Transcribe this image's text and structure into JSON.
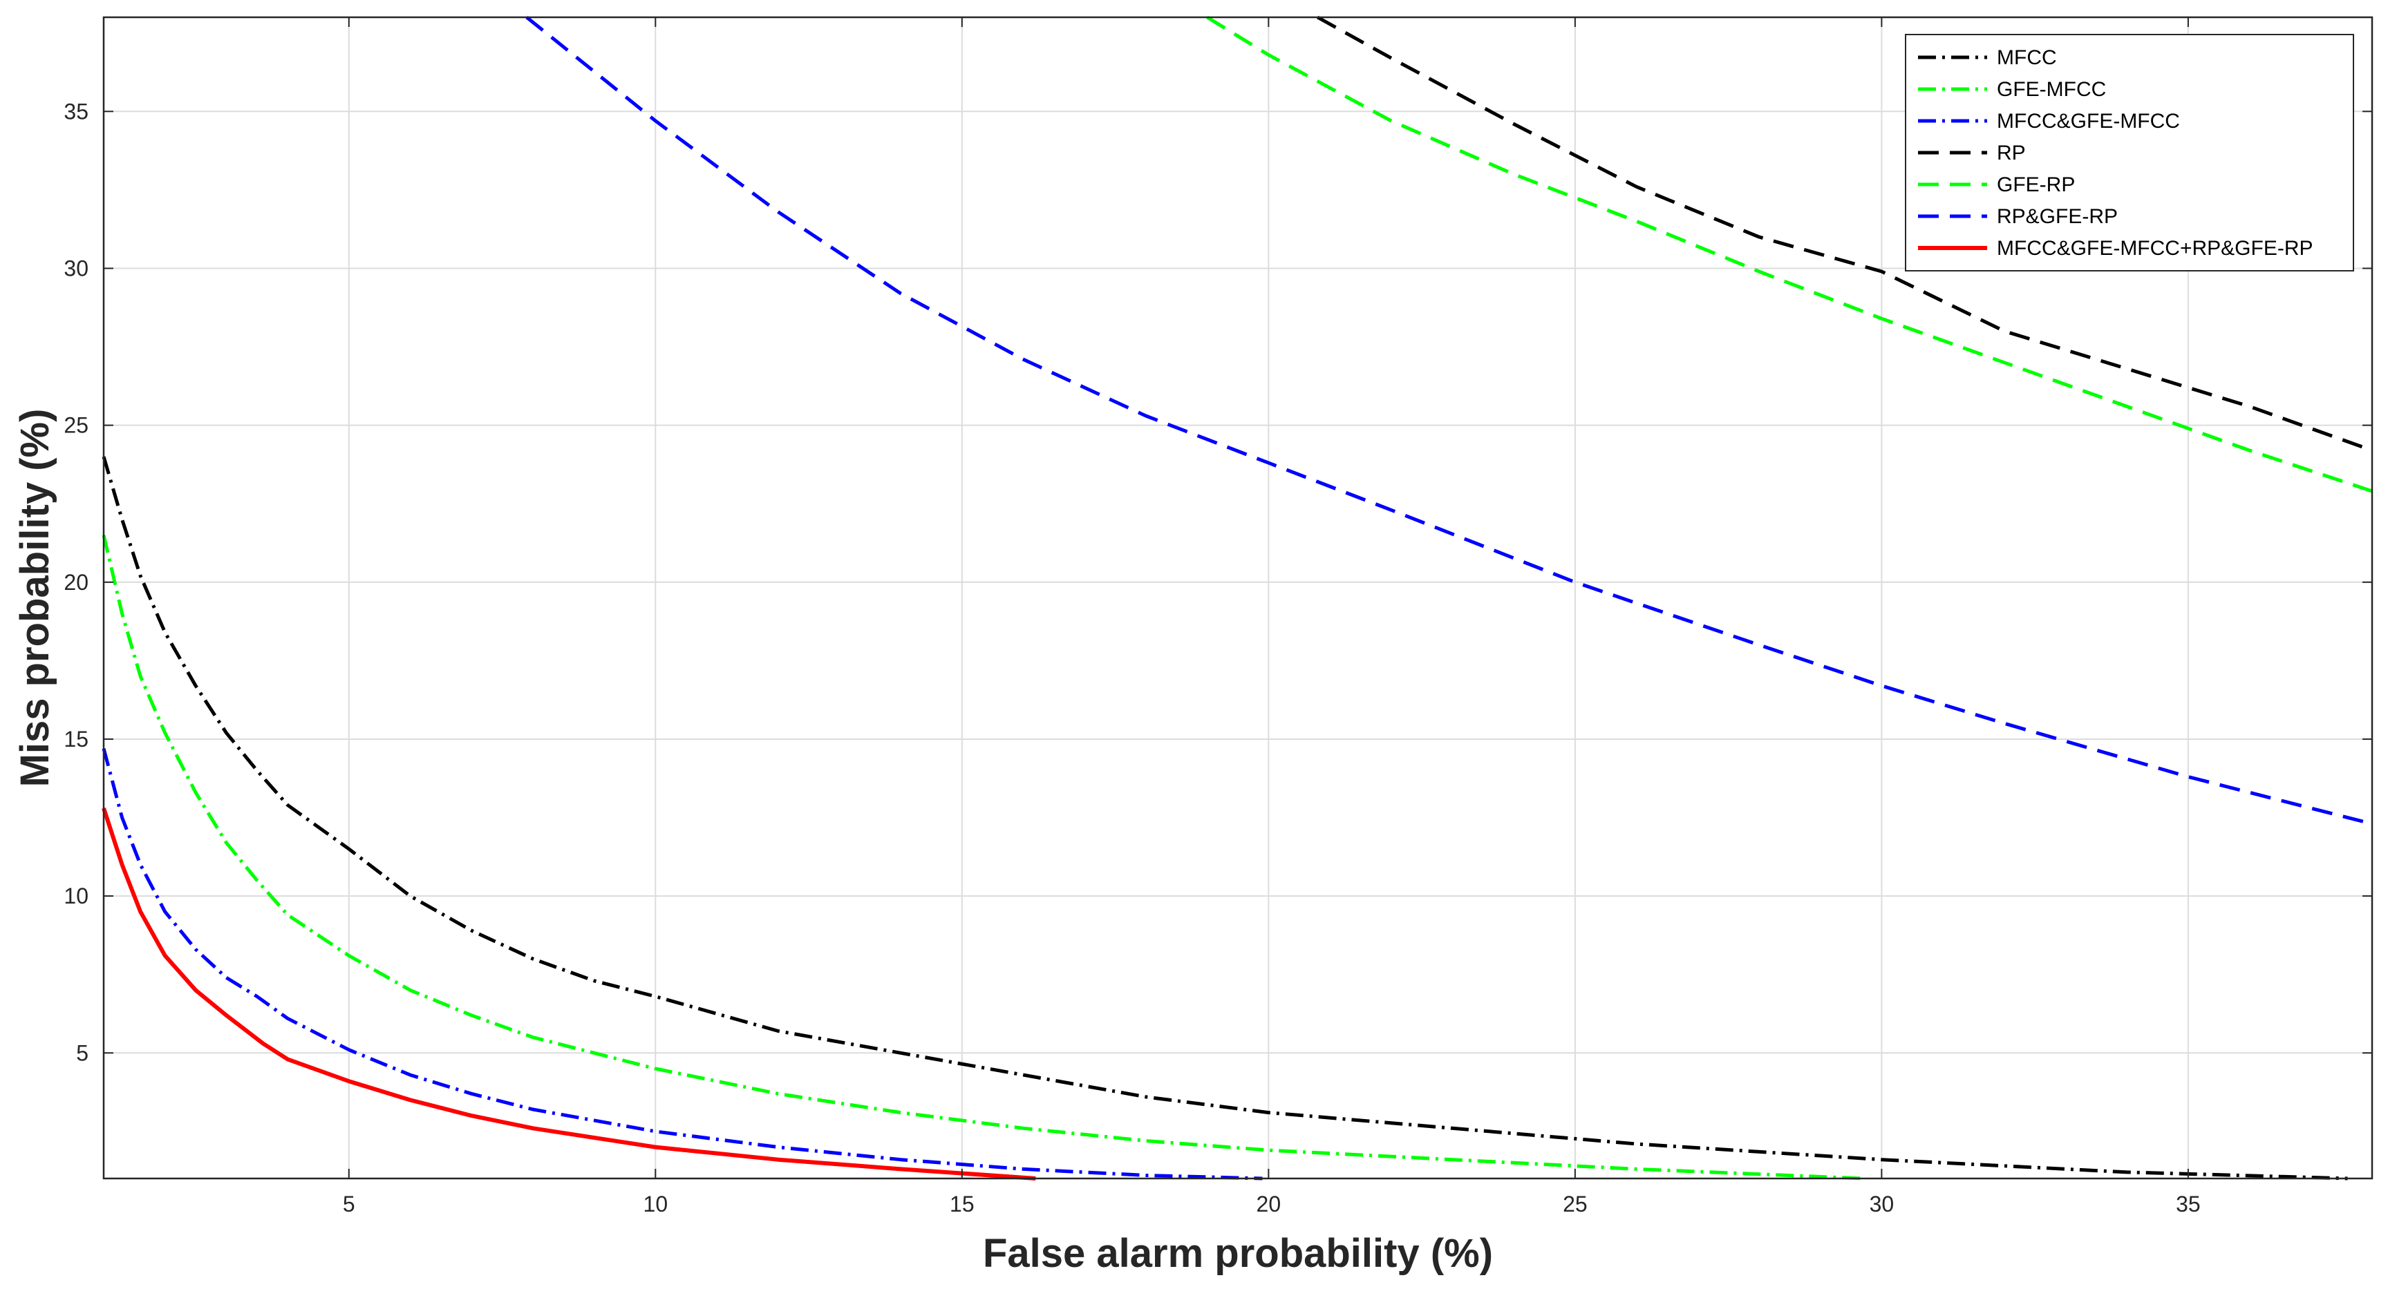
{
  "chart_data": {
    "type": "line",
    "xlabel": "False alarm probability (%)",
    "ylabel": "Miss probability (%)",
    "xlim": [
      1,
      38
    ],
    "ylim": [
      1,
      38
    ],
    "x_ticks": [
      5,
      10,
      15,
      20,
      25,
      30,
      35
    ],
    "y_ticks": [
      5,
      10,
      15,
      20,
      25,
      30,
      35
    ],
    "grid": true,
    "legend_position": "top-right",
    "series": [
      {
        "name": "MFCC",
        "color": "#000000",
        "style": "dashdot",
        "x": [
          1.0,
          1.3,
          1.6,
          2.0,
          2.5,
          3.0,
          3.5,
          4.0,
          5.0,
          6.0,
          7.0,
          8.0,
          9.0,
          10.0,
          12.0,
          14.0,
          16.0,
          18.0,
          20.0,
          23.0,
          26.0,
          30.0,
          34.0,
          37.6
        ],
        "y": [
          24.0,
          22.0,
          20.2,
          18.4,
          16.7,
          15.2,
          14.0,
          12.9,
          11.5,
          10.0,
          8.9,
          8.0,
          7.3,
          6.8,
          5.7,
          5.0,
          4.3,
          3.6,
          3.1,
          2.6,
          2.1,
          1.6,
          1.2,
          0.95
        ]
      },
      {
        "name": "GFE-MFCC",
        "color": "#00ff00",
        "style": "dashdot",
        "x": [
          1.0,
          1.3,
          1.6,
          2.0,
          2.5,
          3.0,
          3.5,
          4.0,
          5.0,
          6.0,
          7.0,
          8.0,
          10.0,
          12.0,
          14.0,
          16.0,
          18.0,
          20.0,
          23.0,
          26.0,
          29.7
        ],
        "y": [
          21.5,
          19.0,
          17.0,
          15.2,
          13.3,
          11.7,
          10.5,
          9.4,
          8.1,
          7.0,
          6.2,
          5.5,
          4.5,
          3.7,
          3.1,
          2.6,
          2.2,
          1.9,
          1.6,
          1.3,
          1.0
        ]
      },
      {
        "name": "MFCC&GFE-MFCC",
        "color": "#0000ff",
        "style": "dashdot",
        "x": [
          1.0,
          1.3,
          1.6,
          2.0,
          2.5,
          3.0,
          3.5,
          4.0,
          5.0,
          6.0,
          7.0,
          8.0,
          10.0,
          12.0,
          14.0,
          16.0,
          18.0,
          19.9
        ],
        "y": [
          14.7,
          12.5,
          11.0,
          9.5,
          8.3,
          7.4,
          6.8,
          6.1,
          5.1,
          4.3,
          3.7,
          3.2,
          2.5,
          2.0,
          1.6,
          1.3,
          1.1,
          1.0
        ]
      },
      {
        "name": "RP",
        "color": "#000000",
        "style": "dashed",
        "x": [
          20.8,
          22.0,
          24.0,
          26.0,
          28.0,
          30.0,
          32.0,
          34.0,
          36.0,
          38.0
        ],
        "y": [
          38.0,
          36.7,
          34.6,
          32.6,
          31.0,
          29.9,
          28.0,
          26.8,
          25.6,
          24.2
        ]
      },
      {
        "name": "GFE-RP",
        "color": "#00ff00",
        "style": "dashed",
        "x": [
          19.0,
          20.0,
          22.0,
          24.0,
          26.0,
          28.0,
          30.0,
          32.0,
          34.0,
          36.0,
          38.0
        ],
        "y": [
          38.0,
          36.8,
          34.7,
          33.0,
          31.5,
          29.9,
          28.4,
          27.0,
          25.6,
          24.2,
          22.9
        ]
      },
      {
        "name": "RP&GFE-RP",
        "color": "#0000ff",
        "style": "dashed",
        "x": [
          7.9,
          10.0,
          12.0,
          14.0,
          16.0,
          18.0,
          20.0,
          22.0,
          25.0,
          28.0,
          30.0,
          32.0,
          35.0,
          38.0
        ],
        "y": [
          38.0,
          34.7,
          31.8,
          29.2,
          27.1,
          25.3,
          23.8,
          22.3,
          20.0,
          18.0,
          16.7,
          15.5,
          13.8,
          12.3
        ]
      },
      {
        "name": "MFCC&GFE-MFCC+RP&GFE-RP",
        "color": "#ff0000",
        "style": "solid",
        "x": [
          1.0,
          1.3,
          1.6,
          2.0,
          2.5,
          3.0,
          3.6,
          4.0,
          5.0,
          6.0,
          7.0,
          8.0,
          10.0,
          12.0,
          14.0,
          16.2
        ],
        "y": [
          12.8,
          11.0,
          9.5,
          8.1,
          7.0,
          6.2,
          5.3,
          4.8,
          4.1,
          3.5,
          3.0,
          2.6,
          2.0,
          1.6,
          1.3,
          1.0
        ]
      }
    ]
  }
}
